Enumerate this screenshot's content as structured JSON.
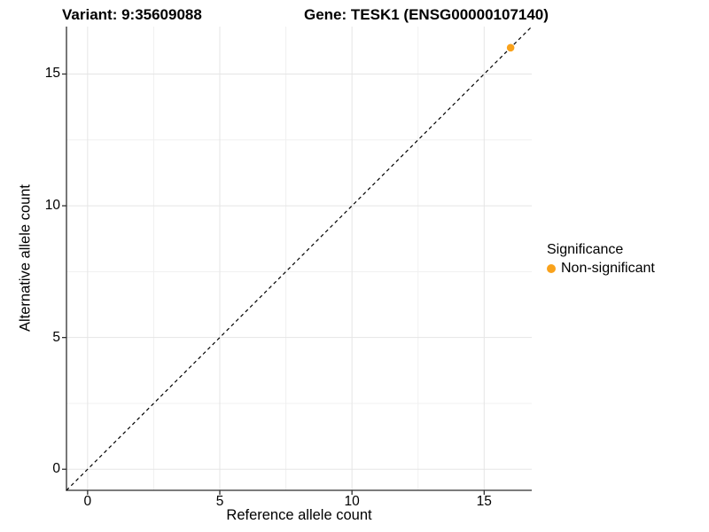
{
  "header": {
    "variant_title": "Variant: 9:35609088",
    "gene_title": "Gene: TESK1 (ENSG00000107140)"
  },
  "chart_data": {
    "type": "scatter",
    "title": "Variant: 9:35609088  Gene: TESK1 (ENSG00000107140)",
    "xlabel": "Reference allele count",
    "ylabel": "Alternative allele count",
    "xlim": [
      -0.8,
      16.8
    ],
    "ylim": [
      -0.8,
      16.8
    ],
    "xticks": [
      0,
      5,
      10,
      15
    ],
    "yticks": [
      0,
      5,
      10,
      15
    ],
    "xtick_labels": [
      "0",
      "5",
      "10",
      "15"
    ],
    "ytick_labels": [
      "0",
      "5",
      "10",
      "15"
    ],
    "xminor": [
      2.5,
      7.5,
      12.5
    ],
    "yminor": [
      2.5,
      7.5,
      12.5
    ],
    "grid": "major and minor, light gray on white",
    "points": [
      {
        "x": 16,
        "y": 16,
        "series": "Non-significant",
        "color": "#F9A21B"
      }
    ],
    "reference_line": {
      "type": "identity y=x",
      "style": "dashed",
      "color": "#000000",
      "from": [
        -0.8,
        -0.8
      ],
      "to": [
        16.8,
        16.8
      ]
    },
    "legend": {
      "title": "Significance",
      "position": "right",
      "items": [
        {
          "label": "Non-significant",
          "color": "#F9A21B",
          "marker": "circle"
        }
      ]
    },
    "colors": {
      "background": "#ffffff",
      "axis_line": "#2f2f2f",
      "grid_major": "#e5e5e5",
      "grid_minor": "#f0f0f0",
      "text": "#000000",
      "point_orange": "#F9A21B"
    }
  }
}
